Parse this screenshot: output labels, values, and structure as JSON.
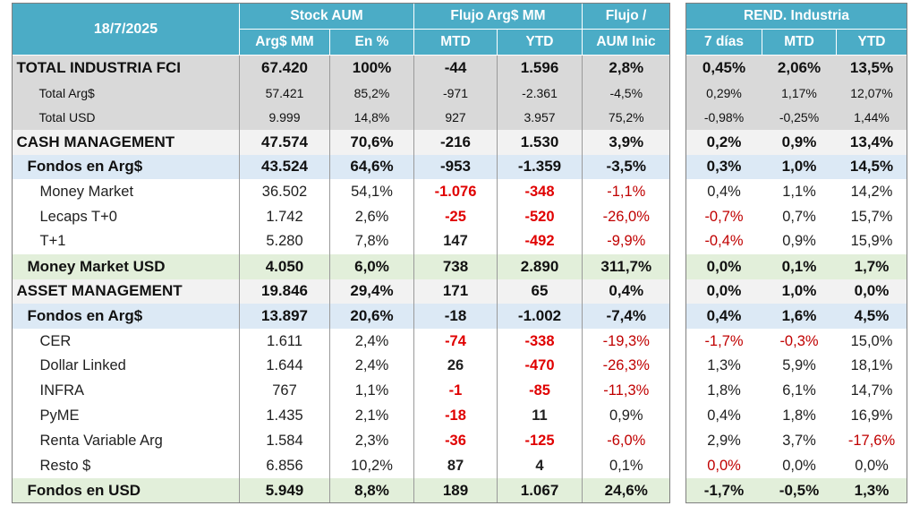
{
  "header": {
    "date": "18/7/2025",
    "stock_group": "Stock AUM",
    "flujo_group": "Flujo Arg$ MM",
    "flujo_aum_line1": "Flujo /",
    "flujo_aum_line2": "AUM Inic",
    "cols": {
      "arg_mm": "Arg$ MM",
      "en_pct": "En %",
      "mtd": "MTD",
      "ytd": "YTD"
    },
    "rend_group": "REND. Industria",
    "rend_cols": {
      "d7": "7 días",
      "mtd": "MTD",
      "ytd": "YTD"
    }
  },
  "rows": [
    {
      "label": "TOTAL INDUSTRIA FCI",
      "stock": "67.420",
      "pct": "100%",
      "mtd": "-44",
      "ytd": "1.596",
      "faum": "2,8%",
      "r7": "0,45%",
      "rmtd": "2,06%",
      "rytd": "13,5%"
    },
    {
      "label": "Total Arg$",
      "stock": "57.421",
      "pct": "85,2%",
      "mtd": "-971",
      "ytd": "-2.361",
      "faum": "-4,5%",
      "r7": "0,29%",
      "rmtd": "1,17%",
      "rytd": "12,07%"
    },
    {
      "label": "Total USD",
      "stock": "9.999",
      "pct": "14,8%",
      "mtd": "927",
      "ytd": "3.957",
      "faum": "75,2%",
      "r7": "-0,98%",
      "rmtd": "-0,25%",
      "rytd": "1,44%"
    },
    {
      "label": "CASH MANAGEMENT",
      "stock": "47.574",
      "pct": "70,6%",
      "mtd": "-216",
      "ytd": "1.530",
      "faum": "3,9%",
      "r7": "0,2%",
      "rmtd": "0,9%",
      "rytd": "13,4%"
    },
    {
      "label": "Fondos en Arg$",
      "stock": "43.524",
      "pct": "64,6%",
      "mtd": "-953",
      "ytd": "-1.359",
      "faum": "-3,5%",
      "r7": "0,3%",
      "rmtd": "1,0%",
      "rytd": "14,5%"
    },
    {
      "label": "Money Market",
      "stock": "36.502",
      "pct": "54,1%",
      "mtd": "-1.076",
      "ytd": "-348",
      "faum": "-1,1%",
      "r7": "0,4%",
      "rmtd": "1,1%",
      "rytd": "14,2%"
    },
    {
      "label": "Lecaps T+0",
      "stock": "1.742",
      "pct": "2,6%",
      "mtd": "-25",
      "ytd": "-520",
      "faum": "-26,0%",
      "r7": "-0,7%",
      "rmtd": "0,7%",
      "rytd": "15,7%"
    },
    {
      "label": "T+1",
      "stock": "5.280",
      "pct": "7,8%",
      "mtd": "147",
      "ytd": "-492",
      "faum": "-9,9%",
      "r7": "-0,4%",
      "rmtd": "0,9%",
      "rytd": "15,9%"
    },
    {
      "label": "Money Market USD",
      "stock": "4.050",
      "pct": "6,0%",
      "mtd": "738",
      "ytd": "2.890",
      "faum": "311,7%",
      "r7": "0,0%",
      "rmtd": "0,1%",
      "rytd": "1,7%"
    },
    {
      "label": "ASSET MANAGEMENT",
      "stock": "19.846",
      "pct": "29,4%",
      "mtd": "171",
      "ytd": "65",
      "faum": "0,4%",
      "r7": "0,0%",
      "rmtd": "1,0%",
      "rytd": "0,0%"
    },
    {
      "label": "Fondos en Arg$",
      "stock": "13.897",
      "pct": "20,6%",
      "mtd": "-18",
      "ytd": "-1.002",
      "faum": "-7,4%",
      "r7": "0,4%",
      "rmtd": "1,6%",
      "rytd": "4,5%"
    },
    {
      "label": "CER",
      "stock": "1.611",
      "pct": "2,4%",
      "mtd": "-74",
      "ytd": "-338",
      "faum": "-19,3%",
      "r7": "-1,7%",
      "rmtd": "-0,3%",
      "rytd": "15,0%"
    },
    {
      "label": "Dollar Linked",
      "stock": "1.644",
      "pct": "2,4%",
      "mtd": "26",
      "ytd": "-470",
      "faum": "-26,3%",
      "r7": "1,3%",
      "rmtd": "5,9%",
      "rytd": "18,1%"
    },
    {
      "label": "INFRA",
      "stock": "767",
      "pct": "1,1%",
      "mtd": "-1",
      "ytd": "-85",
      "faum": "-11,3%",
      "r7": "1,8%",
      "rmtd": "6,1%",
      "rytd": "14,7%"
    },
    {
      "label": "PyME",
      "stock": "1.435",
      "pct": "2,1%",
      "mtd": "-18",
      "ytd": "11",
      "faum": "0,9%",
      "r7": "0,4%",
      "rmtd": "1,8%",
      "rytd": "16,9%"
    },
    {
      "label": "Renta Variable Arg",
      "stock": "1.584",
      "pct": "2,3%",
      "mtd": "-36",
      "ytd": "-125",
      "faum": "-6,0%",
      "r7": "2,9%",
      "rmtd": "3,7%",
      "rytd": "-17,6%"
    },
    {
      "label": "Resto $",
      "stock": "6.856",
      "pct": "10,2%",
      "mtd": "87",
      "ytd": "4",
      "faum": "0,1%",
      "r7": "0,0%",
      "rmtd": "0,0%",
      "rytd": "0,0%"
    },
    {
      "label": "Fondos en USD",
      "stock": "5.949",
      "pct": "8,8%",
      "mtd": "189",
      "ytd": "1.067",
      "faum": "24,6%",
      "r7": "-1,7%",
      "rmtd": "-0,5%",
      "rytd": "1,3%"
    }
  ]
}
